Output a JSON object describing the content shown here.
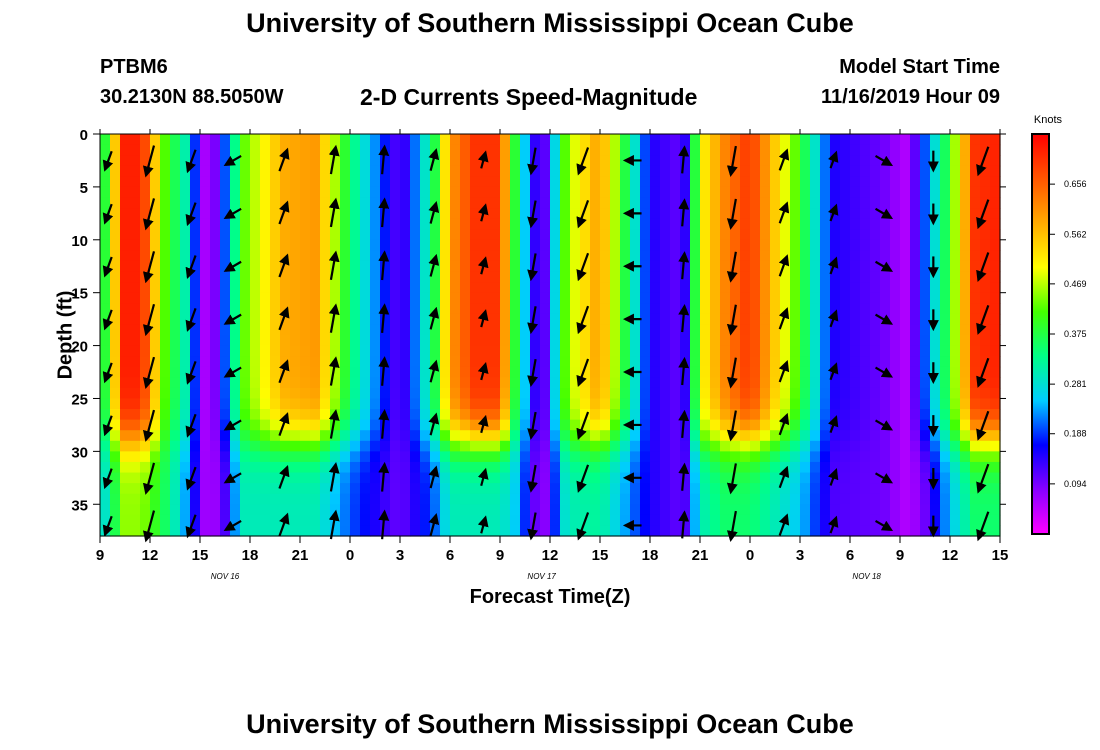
{
  "header": {
    "title": "University of Southern Mississippi Ocean Cube",
    "station": "PTBM6",
    "coords": "30.2130N 88.5050W",
    "subtitle": "2-D Currents Speed-Magnitude",
    "model_start_label": "Model Start Time",
    "model_start_value": "11/16/2019 Hour 09"
  },
  "footer": {
    "title": "University of Southern Mississippi Ocean Cube"
  },
  "chart_data": {
    "type": "heatmap",
    "title": "2-D Currents Speed-Magnitude",
    "xlabel": "Forecast Time(Z)",
    "ylabel": "Depth (ft)",
    "x_ticks": [
      "9",
      "12",
      "15",
      "18",
      "21",
      "0",
      "3",
      "6",
      "9",
      "12",
      "15",
      "18",
      "21",
      "0",
      "3",
      "6",
      "9",
      "12",
      "15"
    ],
    "x_range_hours": [
      0,
      54
    ],
    "date_labels": [
      {
        "hour": 7.5,
        "text": "NOV 16"
      },
      {
        "hour": 26.5,
        "text": "NOV 17"
      },
      {
        "hour": 46.0,
        "text": "NOV 18"
      }
    ],
    "y_ticks": [
      "0",
      "5",
      "10",
      "15",
      "20",
      "25",
      "30",
      "35"
    ],
    "ylim": [
      0,
      38
    ],
    "colorbar": {
      "title": "Knots",
      "ticks": [
        "0.656",
        "0.562",
        "0.469",
        "0.375",
        "0.281",
        "0.188",
        "0.094"
      ],
      "tick_values": [
        0.656,
        0.562,
        0.469,
        0.375,
        0.281,
        0.188,
        0.094
      ],
      "range": [
        0.0,
        0.75
      ],
      "colors": [
        "#ff00ff",
        "#8800ff",
        "#0000ff",
        "#00ccff",
        "#00ff88",
        "#44ff00",
        "#ffff00",
        "#ffaa00",
        "#ff5500",
        "#ff0000"
      ]
    },
    "speed_profile_hours": [
      0,
      1.5,
      2.5,
      4,
      5,
      6.5,
      7.5,
      8.5,
      11,
      13,
      15,
      18,
      20,
      21,
      22.5,
      24,
      25,
      26.5,
      28,
      30,
      33,
      35,
      36,
      37.5,
      39,
      42,
      44,
      47,
      48.5,
      49.5,
      51,
      52.5,
      54
    ],
    "speed_top_knots": [
      0.3,
      0.72,
      0.72,
      0.4,
      0.33,
      0.02,
      0.2,
      0.42,
      0.58,
      0.6,
      0.35,
      0.1,
      0.35,
      0.6,
      0.7,
      0.7,
      0.35,
      0.06,
      0.45,
      0.6,
      0.15,
      0.1,
      0.5,
      0.62,
      0.7,
      0.4,
      0.15,
      0.1,
      0.05,
      0.2,
      0.4,
      0.7,
      0.72
    ],
    "speed_bottom_knots": [
      0.25,
      0.45,
      0.45,
      0.35,
      0.25,
      0.04,
      0.12,
      0.3,
      0.3,
      0.3,
      0.2,
      0.1,
      0.2,
      0.3,
      0.3,
      0.3,
      0.25,
      0.05,
      0.3,
      0.32,
      0.15,
      0.1,
      0.3,
      0.35,
      0.35,
      0.25,
      0.12,
      0.1,
      0.05,
      0.1,
      0.25,
      0.35,
      0.35
    ],
    "layer_depth_ft": 29,
    "arrow_hours": [
      0.5,
      3.0,
      5.5,
      8.0,
      11.0,
      14.0,
      17.0,
      20.0,
      23.0,
      26.0,
      29.0,
      32.0,
      35.0,
      38.0,
      41.0,
      44.0,
      47.0,
      50.0,
      53.0
    ],
    "arrow_depths_ft": [
      2.5,
      7.5,
      12.5,
      17.5,
      22.5,
      27.5,
      32.5,
      37.0
    ],
    "arrow_direction_deg": [
      200,
      195,
      200,
      240,
      20,
      10,
      5,
      15,
      15,
      190,
      200,
      270,
      5,
      190,
      20,
      20,
      120,
      180,
      200
    ],
    "arrow_speed_knots": [
      0.3,
      0.65,
      0.4,
      0.25,
      0.4,
      0.55,
      0.55,
      0.35,
      0.2,
      0.5,
      0.55,
      0.2,
      0.5,
      0.6,
      0.35,
      0.2,
      0.25,
      0.3,
      0.6
    ]
  }
}
